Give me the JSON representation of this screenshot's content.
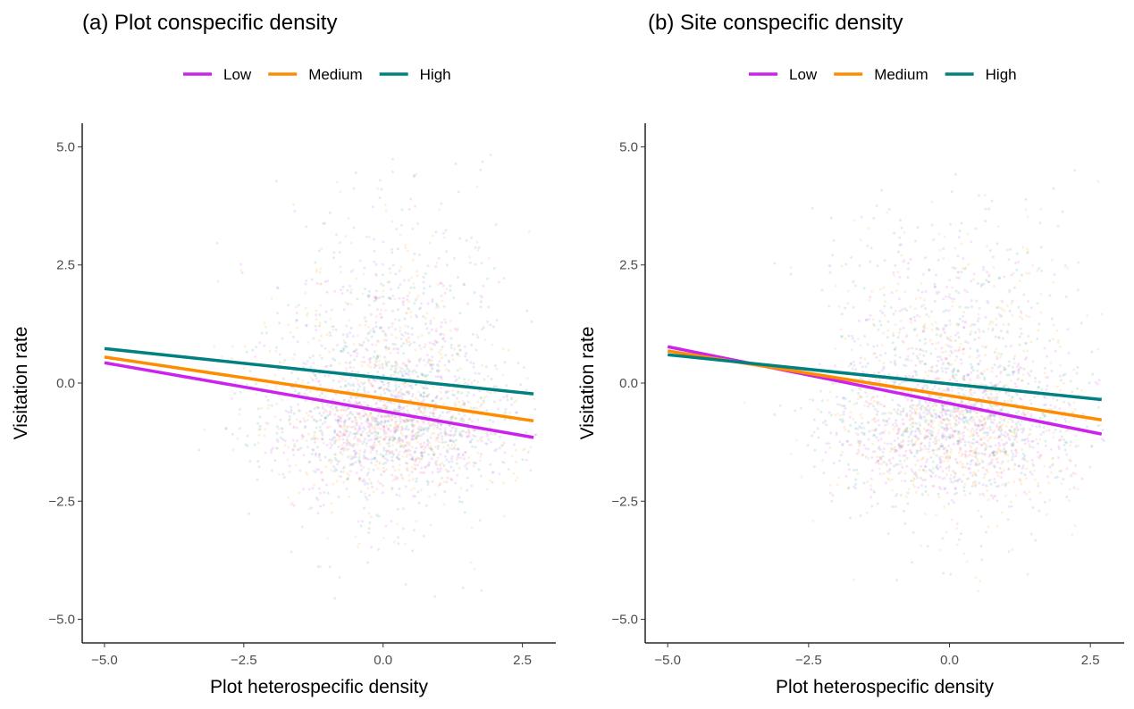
{
  "chart_data": [
    {
      "type": "scatter",
      "title": "(a) Plot conspecific density",
      "xlabel": "Plot heterospecific density",
      "ylabel": "Visitation rate",
      "xlim": [
        -5.4,
        3.1
      ],
      "ylim": [
        -5.5,
        5.5
      ],
      "xticks": [
        -5.0,
        -2.5,
        0.0,
        2.5
      ],
      "yticks": [
        -5.0,
        -2.5,
        0.0,
        2.5,
        5.0
      ],
      "xtick_labels": [
        "−5.0",
        "−2.5",
        "0.0",
        "2.5"
      ],
      "ytick_labels": [
        "−5.0",
        "−2.5",
        "0.0",
        "2.5",
        "5.0"
      ],
      "grid": false,
      "legend_placement": "top",
      "series": [
        {
          "name": "Low",
          "color": "#CC22EE",
          "fit_line": {
            "x": [
              -5.0,
              2.7
            ],
            "y": [
              0.43,
              -1.15
            ]
          }
        },
        {
          "name": "Medium",
          "color": "#FF8C00",
          "fit_line": {
            "x": [
              -5.0,
              2.7
            ],
            "y": [
              0.55,
              -0.8
            ]
          }
        },
        {
          "name": "High",
          "color": "#008080",
          "fit_line": {
            "x": [
              -5.0,
              2.7
            ],
            "y": [
              0.73,
              -0.23
            ]
          }
        }
      ]
    },
    {
      "type": "scatter",
      "title": "(b) Site conspecific density",
      "xlabel": "Plot heterospecific density",
      "ylabel": "Visitation rate",
      "xlim": [
        -5.4,
        3.1
      ],
      "ylim": [
        -5.5,
        5.5
      ],
      "xticks": [
        -5.0,
        -2.5,
        0.0,
        2.5
      ],
      "yticks": [
        -5.0,
        -2.5,
        0.0,
        2.5,
        5.0
      ],
      "xtick_labels": [
        "−5.0",
        "−2.5",
        "0.0",
        "2.5"
      ],
      "ytick_labels": [
        "−5.0",
        "−2.5",
        "0.0",
        "2.5",
        "5.0"
      ],
      "grid": false,
      "legend_placement": "top",
      "series": [
        {
          "name": "Low",
          "color": "#CC22EE",
          "fit_line": {
            "x": [
              -5.0,
              2.7
            ],
            "y": [
              0.77,
              -1.08
            ]
          }
        },
        {
          "name": "Medium",
          "color": "#FF8C00",
          "fit_line": {
            "x": [
              -5.0,
              2.7
            ],
            "y": [
              0.68,
              -0.78
            ]
          }
        },
        {
          "name": "High",
          "color": "#008080",
          "fit_line": {
            "x": [
              -5.0,
              2.7
            ],
            "y": [
              0.6,
              -0.35
            ]
          }
        }
      ]
    }
  ]
}
